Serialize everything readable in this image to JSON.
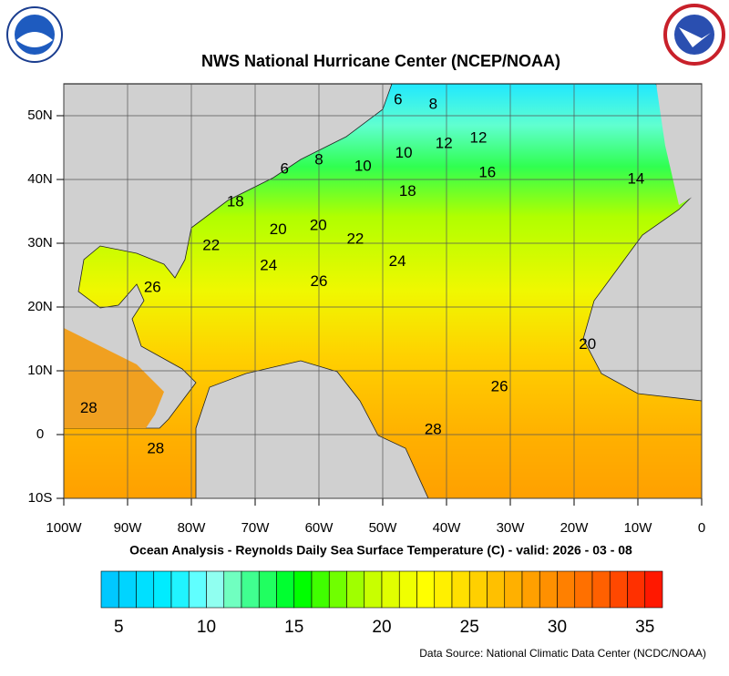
{
  "header": {
    "title": "NWS National Hurricane Center (NCEP/NOAA)",
    "subtitle": "Ocean Analysis - Reynolds Daily Sea Surface Temperature (C) - valid: 2026 - 03 - 08",
    "source": "Data Source: National Climatic Data Center (NCDC/NOAA)"
  },
  "map": {
    "lonlim": [
      -100,
      0
    ],
    "latlim": [
      -10,
      55
    ],
    "lon_ticks": [
      {
        "value": -100,
        "label": "100W"
      },
      {
        "value": -90,
        "label": "90W"
      },
      {
        "value": -80,
        "label": "80W"
      },
      {
        "value": -70,
        "label": "70W"
      },
      {
        "value": -60,
        "label": "60W"
      },
      {
        "value": -50,
        "label": "50W"
      },
      {
        "value": -40,
        "label": "40W"
      },
      {
        "value": -30,
        "label": "30W"
      },
      {
        "value": -20,
        "label": "20W"
      },
      {
        "value": -10,
        "label": "10W"
      },
      0
    ],
    "lat_ticks": [
      {
        "value": -10,
        "label": "10S"
      },
      0,
      {
        "value": 10,
        "label": "10N"
      },
      {
        "value": 20,
        "label": "20N"
      },
      {
        "value": 30,
        "label": "30N"
      },
      {
        "value": 40,
        "label": "40N"
      },
      {
        "value": 50,
        "label": "50N"
      }
    ],
    "contour_labels": [
      {
        "value": 6,
        "lon": -47.6,
        "lat": 52.4
      },
      {
        "value": 8,
        "lon": -42.1,
        "lat": 51.7
      },
      {
        "value": 12,
        "lon": -40.4,
        "lat": 45.6
      },
      {
        "value": 12,
        "lon": -35,
        "lat": 46.4
      },
      {
        "value": 10,
        "lon": -46.7,
        "lat": 44.1
      },
      {
        "value": 10,
        "lon": -53.1,
        "lat": 42
      },
      {
        "value": 8,
        "lon": -60,
        "lat": 43
      },
      {
        "value": 6,
        "lon": -65.4,
        "lat": 41.6
      },
      {
        "value": 16,
        "lon": -33.6,
        "lat": 41
      },
      {
        "value": 14,
        "lon": -10.3,
        "lat": 40
      },
      {
        "value": 18,
        "lon": -46.1,
        "lat": 38.1
      },
      {
        "value": 18,
        "lon": -73.1,
        "lat": 36.4
      },
      {
        "value": 20,
        "lon": -66.4,
        "lat": 32.1
      },
      {
        "value": 20,
        "lon": -60.1,
        "lat": 32.7
      },
      {
        "value": 22,
        "lon": -54.3,
        "lat": 30.6
      },
      {
        "value": 22,
        "lon": -76.9,
        "lat": 29.6
      },
      {
        "value": 24,
        "lon": -67.9,
        "lat": 26.4
      },
      {
        "value": 24,
        "lon": -47.7,
        "lat": 27.1
      },
      {
        "value": 26,
        "lon": -86.1,
        "lat": 23
      },
      {
        "value": 26,
        "lon": -60,
        "lat": 23.9
      },
      {
        "value": 20,
        "lon": -17.9,
        "lat": 14.1
      },
      {
        "value": 26,
        "lon": -31.7,
        "lat": 7.4
      },
      {
        "value": 28,
        "lon": -42.1,
        "lat": 0.7
      },
      {
        "value": 28,
        "lon": -96.1,
        "lat": 4.1
      },
      {
        "value": 28,
        "lon": -85.6,
        "lat": -2.3
      }
    ]
  },
  "colorbar": {
    "range": [
      4,
      36
    ],
    "ticks": [
      5,
      10,
      15,
      20,
      25,
      30,
      35
    ],
    "colors": [
      "#00c8ff",
      "#00d4ff",
      "#00e0ff",
      "#00ecff",
      "#20f4ff",
      "#60ffff",
      "#90fff0",
      "#70ffc0",
      "#40ff90",
      "#20ff60",
      "#00ff30",
      "#00ff00",
      "#40ff00",
      "#70ff00",
      "#a0ff00",
      "#c8ff00",
      "#e0ff00",
      "#f0ff00",
      "#ffff00",
      "#fff000",
      "#ffe000",
      "#ffd000",
      "#ffc000",
      "#ffb000",
      "#ffa000",
      "#ff9000",
      "#ff8000",
      "#ff7000",
      "#ff6000",
      "#ff4800",
      "#ff3000",
      "#ff1800"
    ]
  }
}
